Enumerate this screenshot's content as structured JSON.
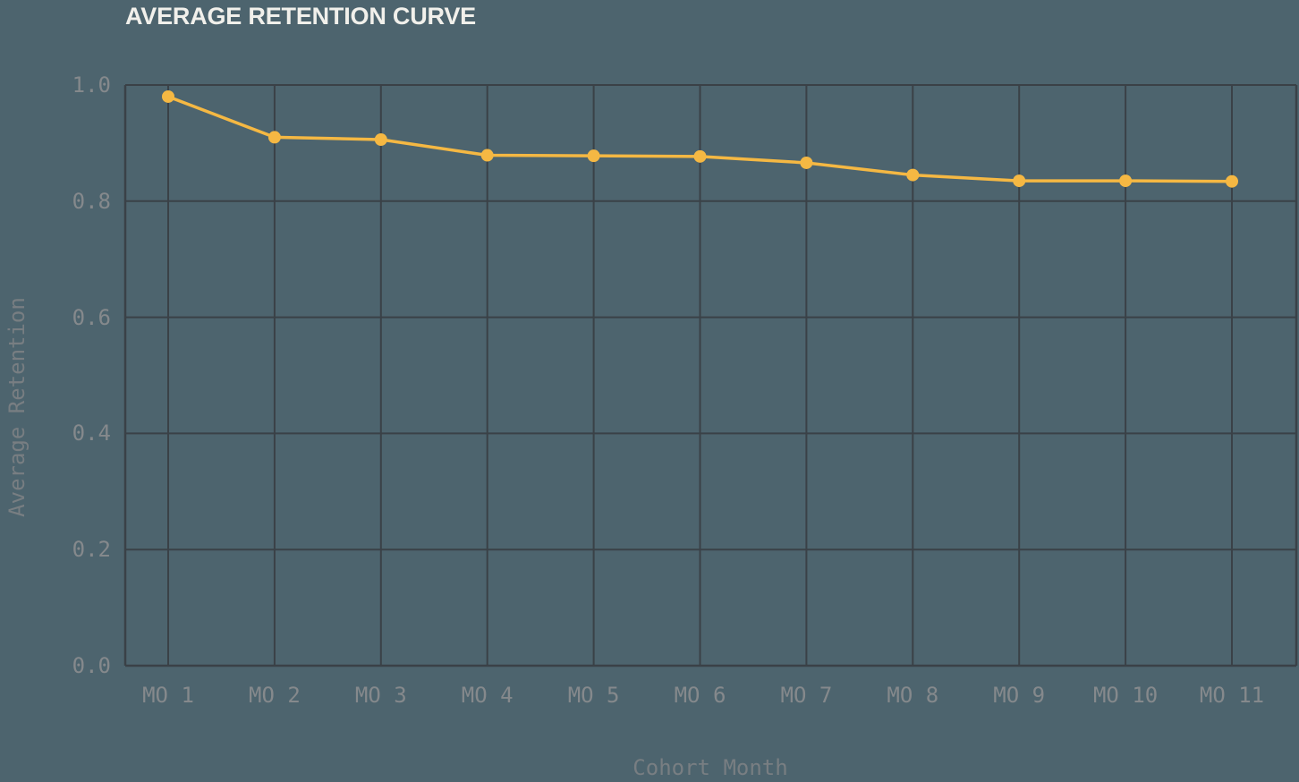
{
  "page": {
    "background_color": "#4D646E"
  },
  "chart_data": {
    "type": "line",
    "title": "AVERAGE RETENTION CURVE",
    "xlabel": "Cohort Month",
    "ylabel": "Average Retention",
    "categories": [
      "MO 1",
      "MO 2",
      "MO 3",
      "MO 4",
      "MO 5",
      "MO 6",
      "MO 7",
      "MO 8",
      "MO 9",
      "MO 10",
      "MO 11"
    ],
    "values": [
      0.98,
      0.91,
      0.906,
      0.879,
      0.878,
      0.877,
      0.866,
      0.845,
      0.835,
      0.835,
      0.834
    ],
    "series_name": "Average Retention",
    "ylim": [
      0.0,
      1.0
    ],
    "yticks": {
      "values": [
        0.0,
        0.2,
        0.4,
        0.6,
        0.8,
        1.0
      ],
      "labels": [
        "0.0",
        "0.2",
        "0.4",
        "0.6",
        "0.8",
        "1.0"
      ]
    },
    "grid": true,
    "legend_position": "none",
    "marker": "circle",
    "colors": {
      "background": "#4D646E",
      "line": "#F5B843",
      "marker": "#F5B843",
      "grid": "#3A4147",
      "axis_border": "#3A4147",
      "title_text": "#F1F0EB",
      "tick_text": "#85898C",
      "axis_label_text": "#787E82"
    }
  }
}
